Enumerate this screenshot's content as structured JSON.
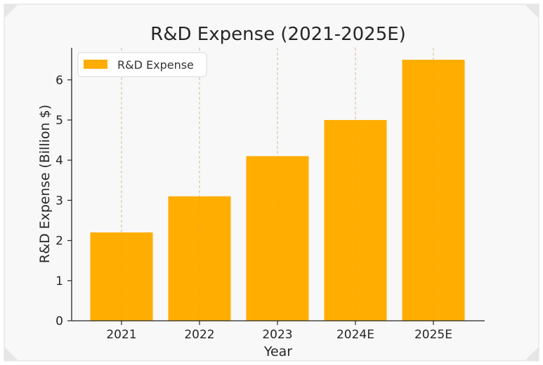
{
  "chart_data": {
    "type": "bar",
    "title": "R&D Expense (2021-2025E)",
    "xlabel": "Year",
    "ylabel": "R&D Expense (Billion $)",
    "categories": [
      "2021",
      "2022",
      "2023",
      "2024E",
      "2025E"
    ],
    "series": [
      {
        "name": "R&D Expense",
        "values": [
          2.2,
          3.1,
          4.1,
          5.0,
          6.5
        ],
        "color": "#FFAD00"
      }
    ],
    "ylim": [
      0,
      6.8
    ],
    "yticks": [
      "0",
      "1",
      "2",
      "3",
      "4",
      "5",
      "6"
    ],
    "grid": "vertical dashed",
    "legend_position": "top-left"
  },
  "colors": {
    "background": "#F8F8F8",
    "frame_border": "#DDDDDD",
    "axis": "#262626",
    "grid": "#CCCCCC"
  }
}
